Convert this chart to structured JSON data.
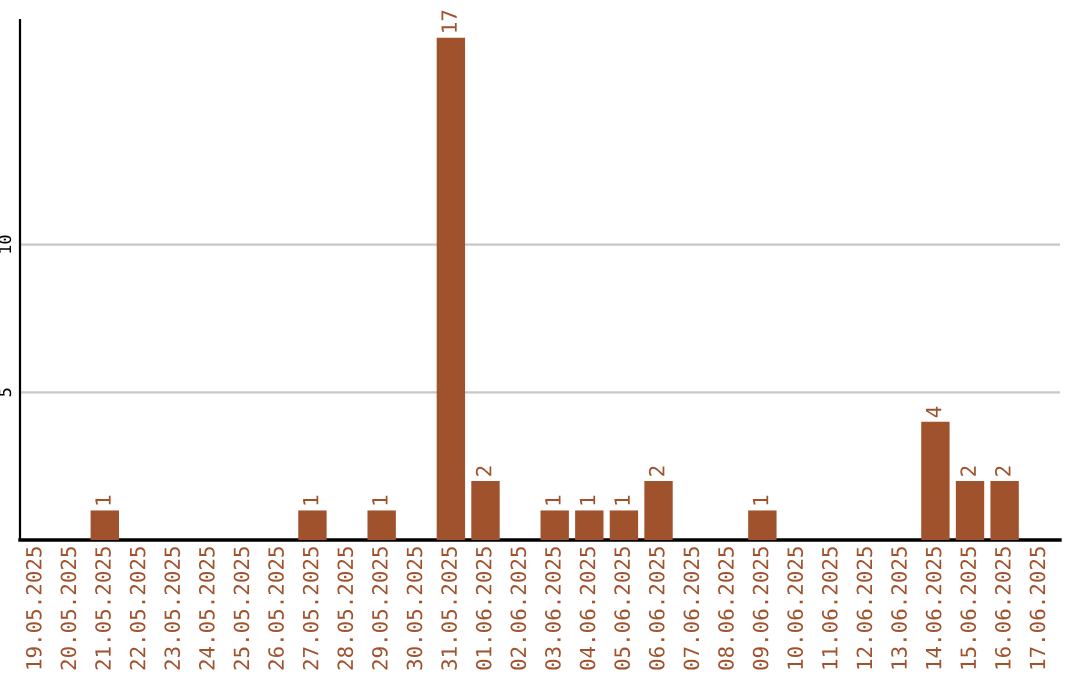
{
  "chart_data": {
    "type": "bar",
    "categories": [
      "19.05.2025",
      "20.05.2025",
      "21.05.2025",
      "22.05.2025",
      "23.05.2025",
      "24.05.2025",
      "25.05.2025",
      "26.05.2025",
      "27.05.2025",
      "28.05.2025",
      "29.05.2025",
      "30.05.2025",
      "31.05.2025",
      "01.06.2025",
      "02.06.2025",
      "03.06.2025",
      "04.06.2025",
      "05.06.2025",
      "06.06.2025",
      "07.06.2025",
      "08.06.2025",
      "09.06.2025",
      "10.06.2025",
      "11.06.2025",
      "12.06.2025",
      "13.06.2025",
      "14.06.2025",
      "15.06.2025",
      "16.06.2025",
      "17.06.2025"
    ],
    "values": [
      null,
      null,
      1,
      null,
      null,
      null,
      null,
      null,
      1,
      null,
      1,
      null,
      17,
      2,
      null,
      1,
      1,
      1,
      2,
      null,
      null,
      1,
      null,
      null,
      null,
      null,
      4,
      2,
      2,
      null
    ],
    "color": "#a0522d",
    "ylim": [
      0,
      17.6
    ],
    "yticks": [
      5,
      10
    ],
    "grid": "y",
    "data_labels": true
  }
}
